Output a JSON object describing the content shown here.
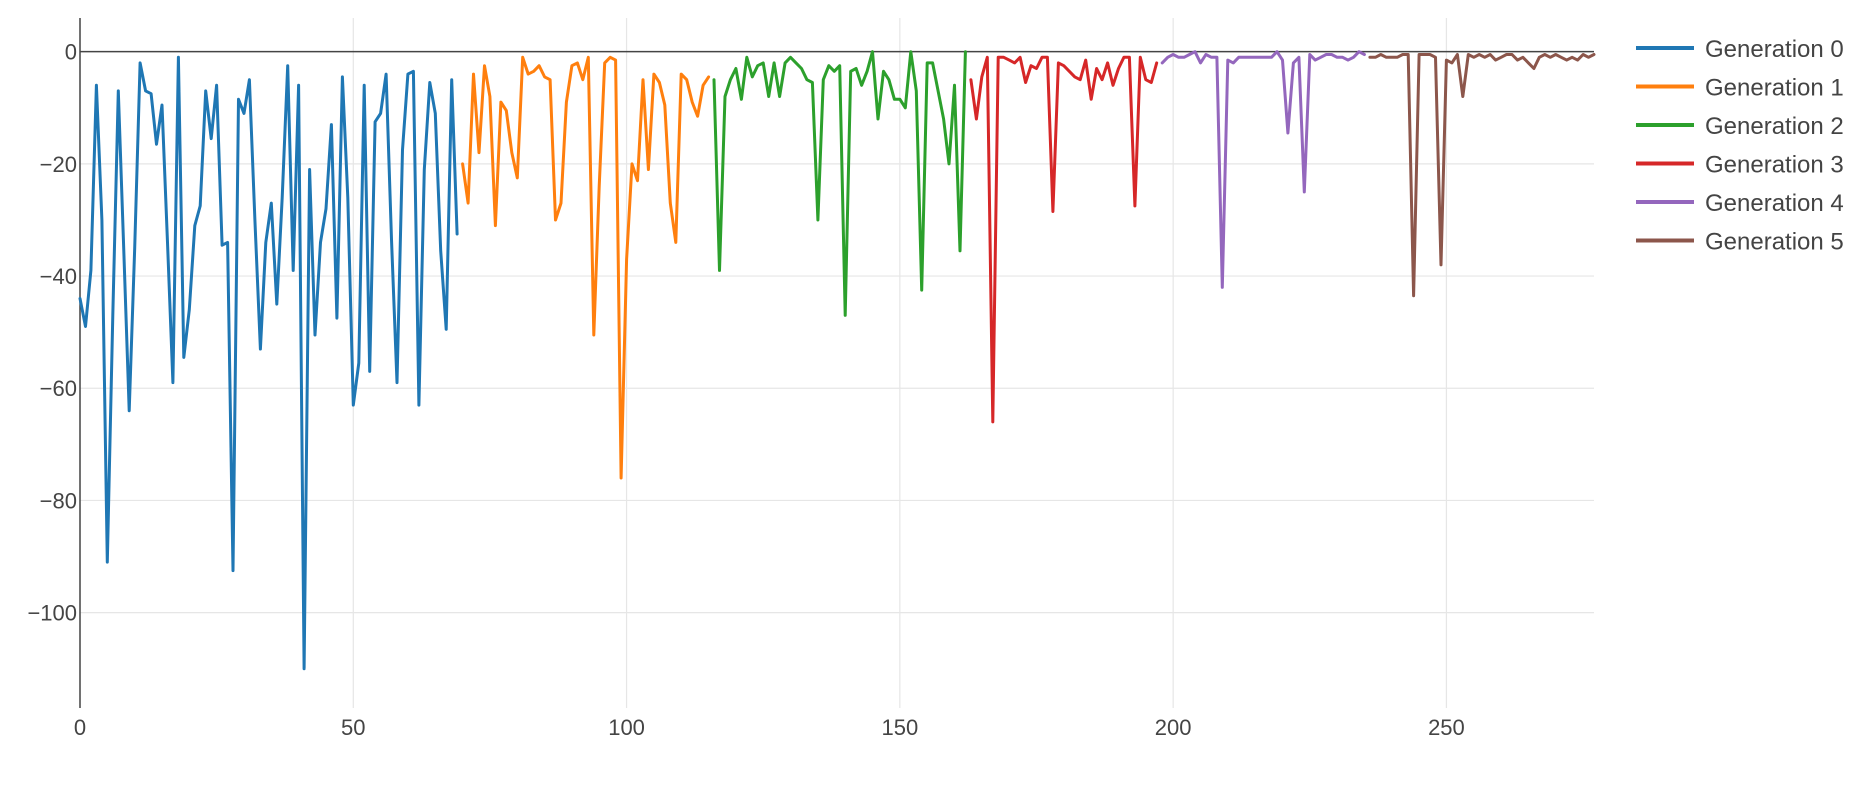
{
  "chart_data": {
    "type": "line",
    "title": "",
    "xlabel": "",
    "ylabel": "",
    "xlim": [
      0,
      277
    ],
    "ylim": [
      -117,
      6
    ],
    "x_ticks": [
      0,
      50,
      100,
      150,
      200,
      250
    ],
    "y_ticks": [
      0,
      -20,
      -40,
      -60,
      -80,
      -100
    ],
    "x_tick_labels": [
      "0",
      "50",
      "100",
      "150",
      "200",
      "250"
    ],
    "y_tick_labels": [
      "0",
      "−20",
      "−40",
      "−60",
      "−80",
      "−100"
    ],
    "grid": true,
    "zero_line": true,
    "legend_position": "top-right",
    "series": [
      {
        "name": "Generation 0",
        "color": "#1f77b4",
        "x_start": 0,
        "values": [
          -44,
          -49,
          -39,
          -6,
          -30,
          -91,
          -47,
          -7,
          -35,
          -64,
          -35,
          -2,
          -7,
          -7.5,
          -16.5,
          -9.5,
          -34,
          -59,
          -1,
          -54.5,
          -46,
          -31,
          -27.5,
          -7,
          -15.5,
          -6,
          -34.5,
          -34,
          -92.5,
          -8.5,
          -11,
          -5,
          -30,
          -53,
          -34,
          -27,
          -45,
          -26,
          -2.5,
          -39,
          -6,
          -110,
          -21,
          -50.5,
          -34,
          -28,
          -13,
          -47.5,
          -4.5,
          -26,
          -63,
          -55.5,
          -6,
          -57,
          -12.5,
          -11,
          -4,
          -33.5,
          -59,
          -17.5,
          -4,
          -3.5,
          -63,
          -21,
          -5.5,
          -11,
          -35.5,
          -49.5,
          -5,
          -32.5
        ]
      },
      {
        "name": "Generation 1",
        "color": "#ff7f0e",
        "x_start": 70,
        "values": [
          -20,
          -27,
          -4,
          -18,
          -2.5,
          -8,
          -31,
          -9,
          -10.5,
          -18,
          -22.5,
          -1,
          -4,
          -3.5,
          -2.5,
          -4.5,
          -5,
          -30,
          -27,
          -9,
          -2.5,
          -2,
          -5,
          -1,
          -50.5,
          -24,
          -2,
          -1,
          -1.5,
          -76,
          -37,
          -20,
          -23,
          -5,
          -21,
          -4,
          -5.5,
          -9.5,
          -27,
          -34,
          -4,
          -5,
          -9,
          -11.5,
          -6,
          -4.5
        ]
      },
      {
        "name": "Generation 2",
        "color": "#2ca02c",
        "x_start": 116,
        "values": [
          -5,
          -39,
          -8,
          -5,
          -3,
          -8.5,
          -1,
          -4.5,
          -2.5,
          -2,
          -8,
          -2,
          -8,
          -2,
          -1,
          -2,
          -3,
          -5,
          -5.5,
          -30,
          -5,
          -2.5,
          -3.5,
          -2.5,
          -47,
          -3.5,
          -3,
          -6,
          -3.5,
          0,
          -12,
          -3.5,
          -5,
          -8.5,
          -8.5,
          -10,
          0,
          -7,
          -42.5,
          -2,
          -2,
          -7,
          -12,
          -20,
          -6,
          -35.5,
          0
        ]
      },
      {
        "name": "Generation 3",
        "color": "#d62728",
        "x_start": 163,
        "values": [
          -5,
          -12,
          -4.5,
          -1,
          -66,
          -1,
          -1,
          -1.5,
          -2,
          -1,
          -5.5,
          -2.5,
          -3,
          -1,
          -1,
          -28.5,
          -2,
          -2.5,
          -3.5,
          -4.5,
          -5,
          -1.5,
          -8.5,
          -3,
          -5,
          -2,
          -6,
          -3,
          -1,
          -1,
          -27.5,
          -1,
          -5,
          -5.5,
          -2
        ]
      },
      {
        "name": "Generation 4",
        "color": "#9467bd",
        "x_start": 198,
        "values": [
          -2,
          -1,
          -0.5,
          -1,
          -1,
          -0.5,
          0,
          -2,
          -0.5,
          -1,
          -1,
          -42,
          -1.5,
          -2,
          -1,
          -1,
          -1,
          -1,
          -1,
          -1,
          -1,
          0,
          -1.5,
          -14.5,
          -2,
          -1,
          -25,
          -0.5,
          -1.5,
          -1,
          -0.5,
          -0.5,
          -1,
          -1,
          -1.5,
          -1,
          0,
          -0.5
        ]
      },
      {
        "name": "Generation 5",
        "color": "#8c564b",
        "x_start": 236,
        "values": [
          -1,
          -1,
          -0.5,
          -1,
          -1,
          -1,
          -0.5,
          -0.5,
          -43.5,
          -0.5,
          -0.5,
          -0.5,
          -1,
          -38,
          -1.5,
          -2,
          -0.5,
          -8,
          -0.5,
          -1,
          -0.5,
          -1,
          -0.5,
          -1.5,
          -1,
          -0.5,
          -0.5,
          -1.5,
          -1,
          -2,
          -3,
          -1,
          -0.5,
          -1,
          -0.5,
          -1,
          -1.5,
          -1,
          -1.5,
          -0.5,
          -1,
          -0.5
        ]
      }
    ]
  }
}
